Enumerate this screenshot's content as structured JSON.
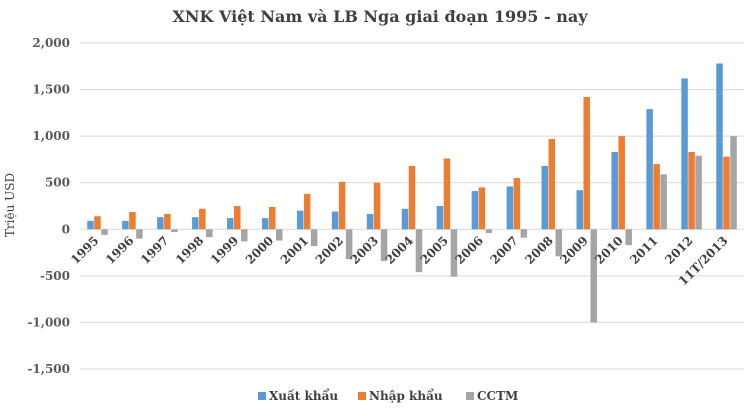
{
  "chart_data": {
    "type": "bar",
    "title": "XNK Việt Nam và LB Nga giai đoạn 1995 - nay",
    "ylabel": "Triệu USD",
    "xlabel": "",
    "ylim": [
      -1500,
      2000
    ],
    "yticks": [
      2000,
      1500,
      1000,
      500,
      0,
      -500,
      -1000,
      -1500
    ],
    "ytick_labels": [
      "2,000",
      "1,500",
      "1,000",
      "500",
      "0",
      "-500",
      "-1,000",
      "-1,500"
    ],
    "grid": true,
    "legend_position": "bottom",
    "categories": [
      "1995",
      "1996",
      "1997",
      "1998",
      "1999",
      "2000",
      "2001",
      "2002",
      "2003",
      "2004",
      "2005",
      "2006",
      "2007",
      "2008",
      "2009",
      "2010",
      "2011",
      "2012",
      "11T/2013"
    ],
    "series": [
      {
        "name": "Xuất khẩu",
        "color": "#5b9bd5",
        "values": [
          90,
          90,
          130,
          130,
          120,
          120,
          200,
          190,
          165,
          220,
          250,
          410,
          460,
          680,
          420,
          830,
          1290,
          1620,
          1780
        ]
      },
      {
        "name": "Nhập khẩu",
        "color": "#ed7d31",
        "values": [
          140,
          185,
          165,
          220,
          250,
          240,
          380,
          510,
          500,
          680,
          760,
          450,
          550,
          970,
          1420,
          1000,
          700,
          830,
          780
        ]
      },
      {
        "name": "CCTM",
        "color": "#a5a5a5",
        "values": [
          -60,
          -100,
          -30,
          -85,
          -130,
          -120,
          -180,
          -320,
          -340,
          -460,
          -510,
          -40,
          -90,
          -290,
          -1000,
          -170,
          590,
          790,
          1000
        ]
      }
    ]
  }
}
